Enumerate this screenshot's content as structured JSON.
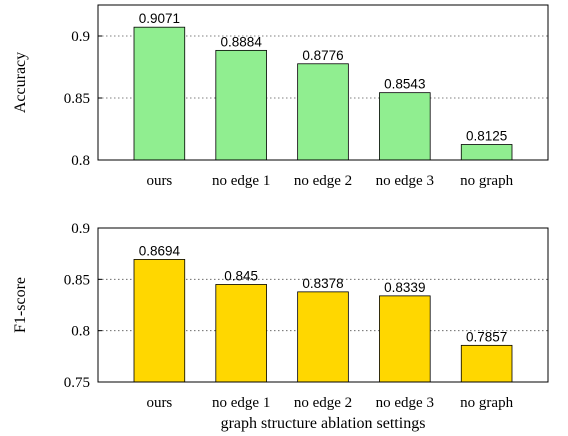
{
  "chart_data": [
    {
      "type": "bar",
      "categories": [
        "ours",
        "no edge 1",
        "no edge 2",
        "no edge 3",
        "no graph"
      ],
      "values": [
        0.9071,
        0.8884,
        0.8776,
        0.8543,
        0.8125
      ],
      "value_labels": [
        "0.9071",
        "0.8884",
        "0.8776",
        "0.8543",
        "0.8125"
      ],
      "ylabel": "Accuracy",
      "xlabel": "",
      "ylim": [
        0.8,
        0.925
      ],
      "yticks": [
        0.8,
        0.85,
        0.9
      ],
      "ytick_labels": [
        "0.8",
        "0.85",
        "0.9"
      ],
      "grid": "horizontal dotted",
      "color": "#90EE90"
    },
    {
      "type": "bar",
      "categories": [
        "ours",
        "no edge 1",
        "no edge 2",
        "no edge 3",
        "no graph"
      ],
      "values": [
        0.8694,
        0.845,
        0.8378,
        0.8339,
        0.7857
      ],
      "value_labels": [
        "0.8694",
        "0.845",
        "0.8378",
        "0.8339",
        "0.7857"
      ],
      "ylabel": "F1-score",
      "xlabel": "graph structure ablation settings",
      "ylim": [
        0.75,
        0.9
      ],
      "yticks": [
        0.75,
        0.8,
        0.85,
        0.9
      ],
      "ytick_labels": [
        "0.75",
        "0.8",
        "0.85",
        "0.9"
      ],
      "grid": "horizontal dotted",
      "color": "#FFD700"
    }
  ]
}
